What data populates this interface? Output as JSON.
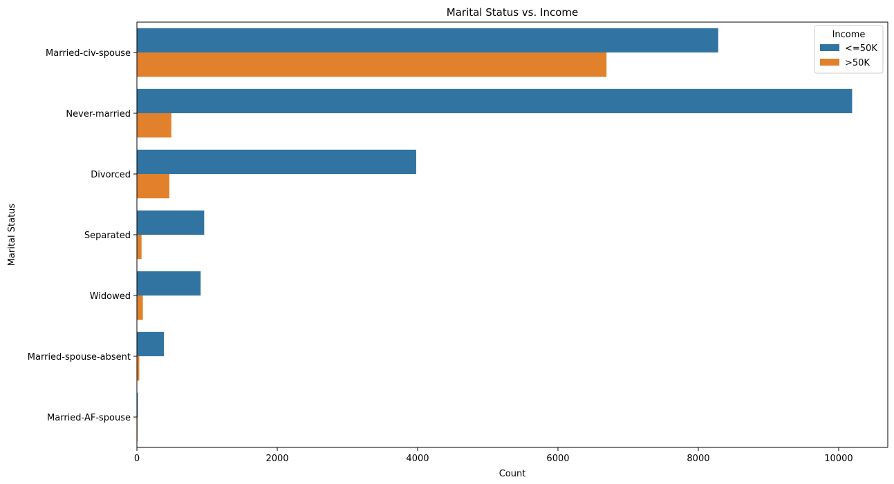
{
  "chart_data": {
    "type": "bar",
    "orientation": "horizontal",
    "title": "Marital Status vs. Income",
    "xlabel": "Count",
    "ylabel": "Marital Status",
    "xlim": [
      0,
      10700
    ],
    "xticks": [
      0,
      2000,
      4000,
      6000,
      8000,
      10000
    ],
    "categories": [
      "Married-civ-spouse",
      "Never-married",
      "Divorced",
      "Separated",
      "Widowed",
      "Married-spouse-absent",
      "Married-AF-spouse"
    ],
    "series": [
      {
        "name": "<=50K",
        "color": "#3274a1",
        "values": [
          8284,
          10192,
          3980,
          959,
          908,
          384,
          13
        ]
      },
      {
        "name": ">50K",
        "color": "#e1812c",
        "values": [
          6692,
          491,
          463,
          66,
          85,
          34,
          10
        ]
      }
    ],
    "legend": {
      "title": "Income",
      "placement": "top-right"
    },
    "grid": false
  }
}
